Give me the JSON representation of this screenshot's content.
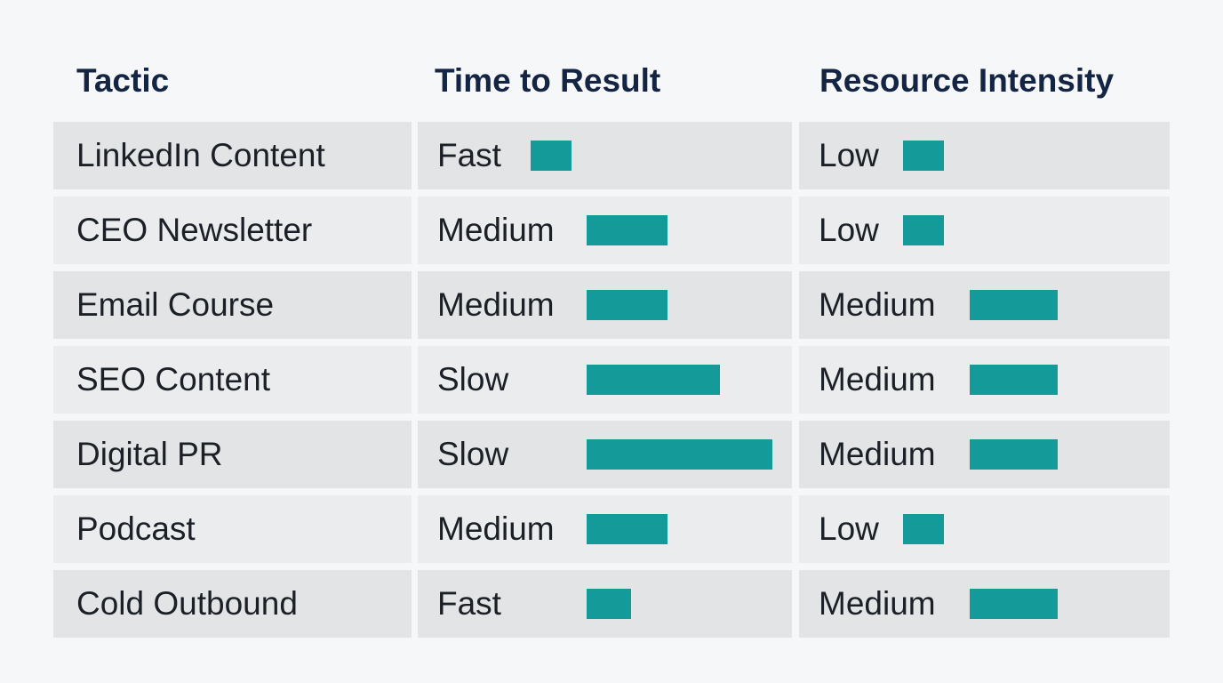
{
  "chart_data": {
    "type": "table",
    "columns": [
      "Tactic",
      "Time to Result",
      "Resource Intensity"
    ],
    "rows": [
      {
        "tactic": "LinkedIn Content",
        "time": "Fast",
        "time_level": 1,
        "resource": "Low",
        "resource_level": 1
      },
      {
        "tactic": "CEO Newsletter",
        "time": "Medium",
        "time_level": 2,
        "resource": "Low",
        "resource_level": 1
      },
      {
        "tactic": "Email Course",
        "time": "Medium",
        "time_level": 2,
        "resource": "Medium",
        "resource_level": 2
      },
      {
        "tactic": "SEO Content",
        "time": "Slow",
        "time_level": 3.3,
        "resource": "Medium",
        "resource_level": 2
      },
      {
        "tactic": "Digital PR",
        "time": "Slow",
        "time_level": 4.6,
        "resource": "Medium",
        "resource_level": 2
      },
      {
        "tactic": "Podcast",
        "time": "Medium",
        "time_level": 2,
        "resource": "Low",
        "resource_level": 1
      },
      {
        "tactic": "Cold Outbound",
        "time": "Fast",
        "time_level": 1.1,
        "resource": "Medium",
        "resource_level": 2
      }
    ],
    "bar_color": "#149a98",
    "header_color": "#142544"
  }
}
